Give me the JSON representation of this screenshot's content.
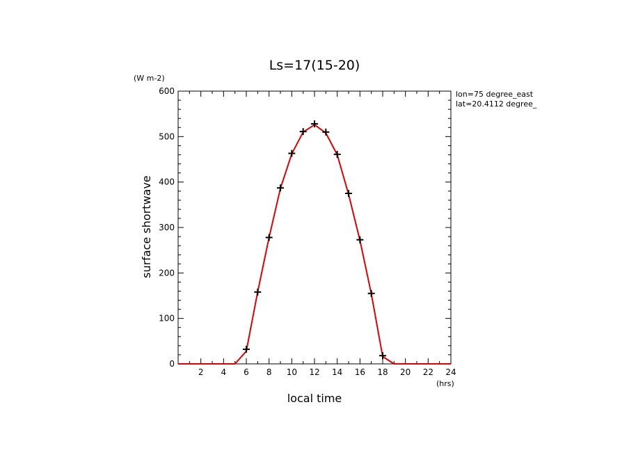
{
  "chart_data": {
    "type": "line",
    "title": "Ls=17(15-20)",
    "xlabel": "local time",
    "ylabel": "surface shortwave",
    "x_unit": "(hrs)",
    "y_unit": "(W m-2)",
    "annotations": [
      "lon=75 degree_east",
      "lat=20.4112 degree_"
    ],
    "xlim": [
      0,
      24
    ],
    "ylim": [
      0,
      600
    ],
    "x_ticks": [
      2,
      4,
      6,
      8,
      10,
      12,
      14,
      16,
      18,
      20,
      22,
      24
    ],
    "y_ticks": [
      0,
      100,
      200,
      300,
      400,
      500,
      600
    ],
    "grid": false,
    "series": [
      {
        "role": "line",
        "color": "#e00000",
        "x": [
          0,
          1,
          2,
          3,
          4,
          5,
          6,
          7,
          8,
          9,
          10,
          11,
          12,
          13,
          14,
          15,
          16,
          17,
          18,
          19,
          20,
          21,
          22,
          23,
          24
        ],
        "y": [
          0,
          0,
          0,
          0,
          0,
          0,
          28,
          158,
          278,
          386,
          462,
          510,
          526,
          508,
          460,
          373,
          272,
          154,
          16,
          0,
          0,
          0,
          0,
          0,
          0
        ]
      },
      {
        "role": "markers",
        "color": "#000000",
        "marker": "plus",
        "x": [
          6,
          7,
          8,
          9,
          10,
          11,
          12,
          13,
          14,
          15,
          16,
          17,
          18
        ],
        "y": [
          32,
          158,
          278,
          387,
          463,
          511,
          528,
          510,
          461,
          375,
          273,
          155,
          18
        ]
      }
    ]
  }
}
